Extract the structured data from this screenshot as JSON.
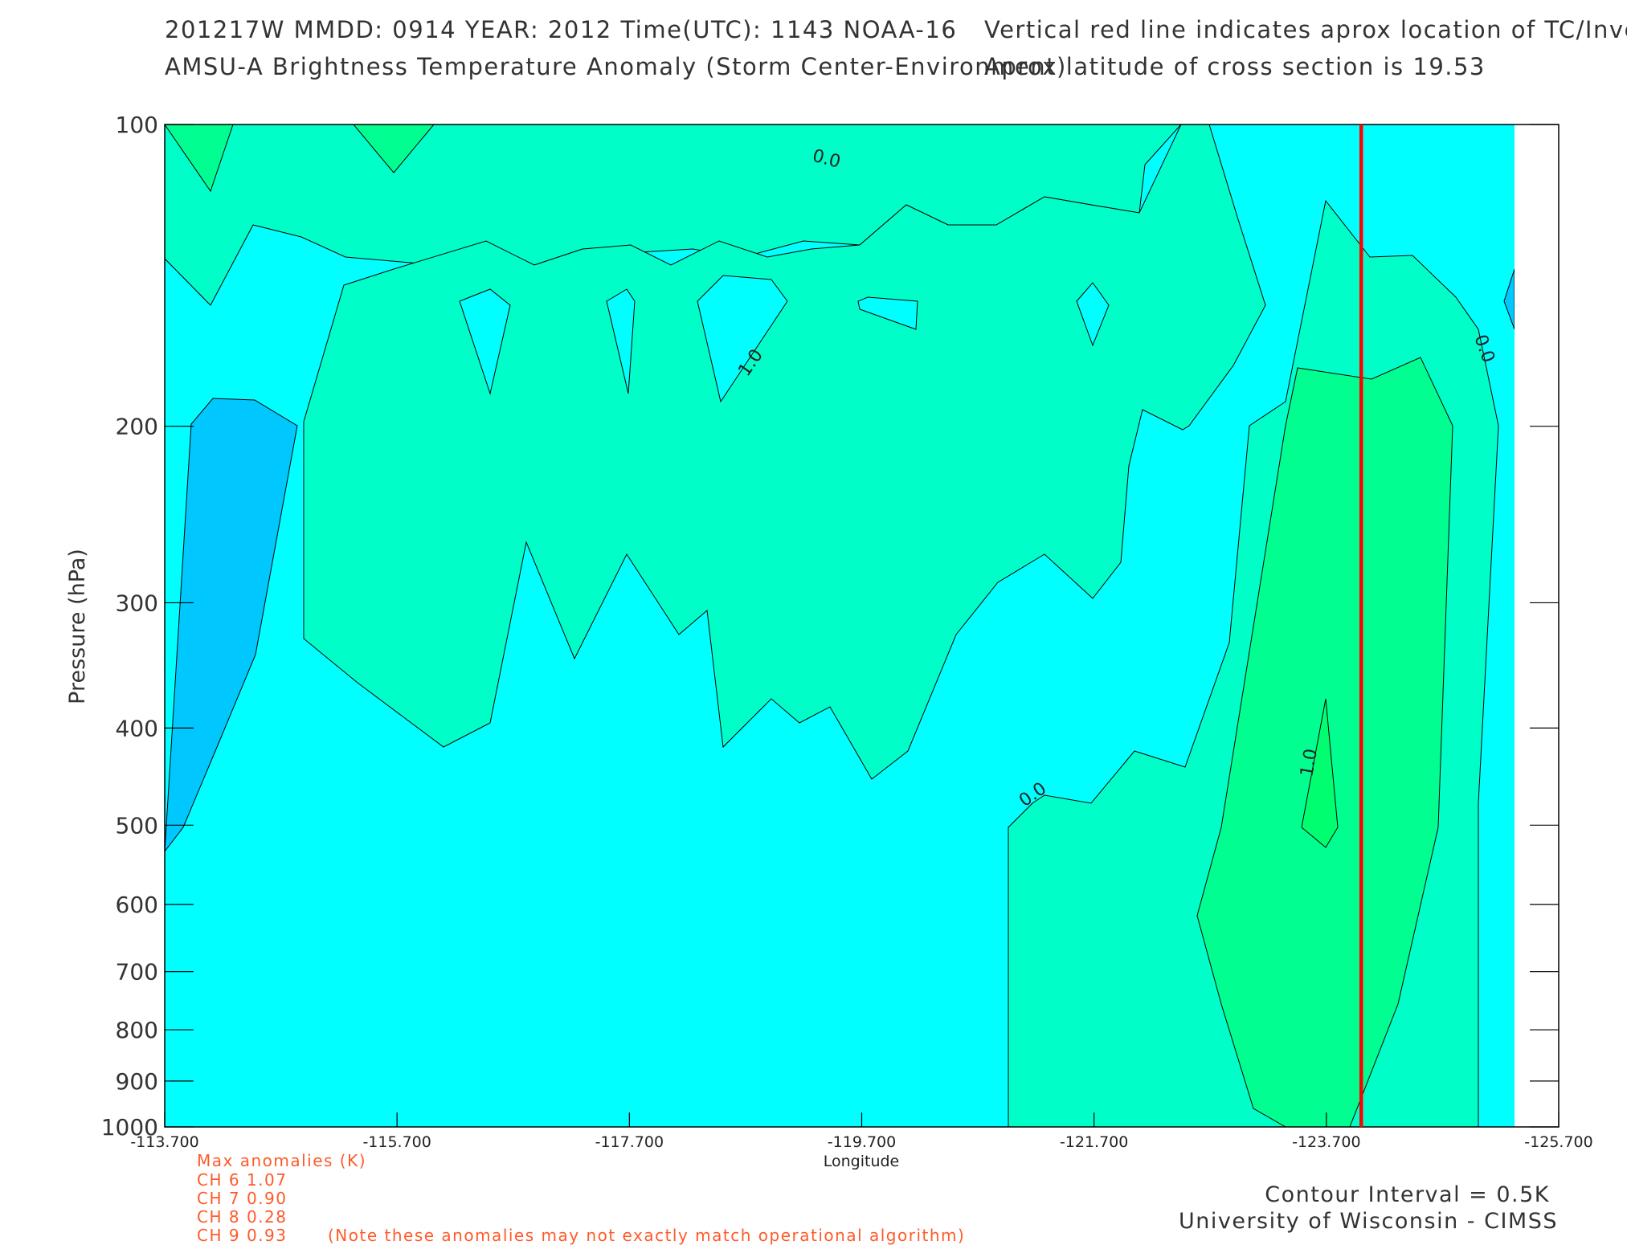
{
  "header": {
    "line1_left": "201217W  MMDD: 0914 YEAR: 2012 Time(UTC): 1143 NOAA-16",
    "line2_left": "AMSU-A Brightness Temperature Anomaly (Storm Center-Environment)",
    "line1_right": "Vertical red line indicates aprox location of TC/Invest",
    "line2_right": "Aprox latitude of cross section is 19.53"
  },
  "chart_data": {
    "type": "heatmap",
    "title": "AMSU-A Brightness Temperature Anomaly (Storm Center-Environment)",
    "xlabel": "Longitude",
    "ylabel": "Pressure (hPa)",
    "x_ticks": [
      "-113.700",
      "-115.700",
      "-117.700",
      "-119.700",
      "-121.700",
      "-123.700",
      "-125.700"
    ],
    "x_tick_values": [
      -113.7,
      -115.7,
      -117.7,
      -119.7,
      -121.7,
      -123.7,
      -125.7
    ],
    "y_ticks": [
      "100",
      "200",
      "300",
      "400",
      "500",
      "600",
      "700",
      "800",
      "900",
      "1000"
    ],
    "y_tick_values": [
      100,
      200,
      300,
      400,
      500,
      600,
      700,
      800,
      900,
      1000
    ],
    "xlim": [
      -113.7,
      -125.7
    ],
    "ylim": [
      100,
      1000
    ],
    "y_scale": "log",
    "contour_interval_K": 0.5,
    "contour_labels": [
      "0.0",
      "1.0",
      "0.0",
      "0.0",
      "1.0"
    ],
    "tc_longitude": -124.0,
    "colors": {
      "neg_0_5": "#00c8ff",
      "zero": "#00ffff",
      "pos_0_5": "#00ffc8",
      "pos_1_0": "#00ff90",
      "tc_line": "#ff0000"
    }
  },
  "max_anomalies": {
    "title": "Max anomalies (K)",
    "rows": [
      "CH 6  1.07",
      "CH 7  0.90",
      "CH 8  0.28",
      "CH 9  0.93"
    ],
    "note": "(Note these anomalies may not exactly match operational algorithm)"
  },
  "footer": {
    "contour_interval": "Contour Interval = 0.5K",
    "credit": "University of Wisconsin - CIMSS"
  }
}
